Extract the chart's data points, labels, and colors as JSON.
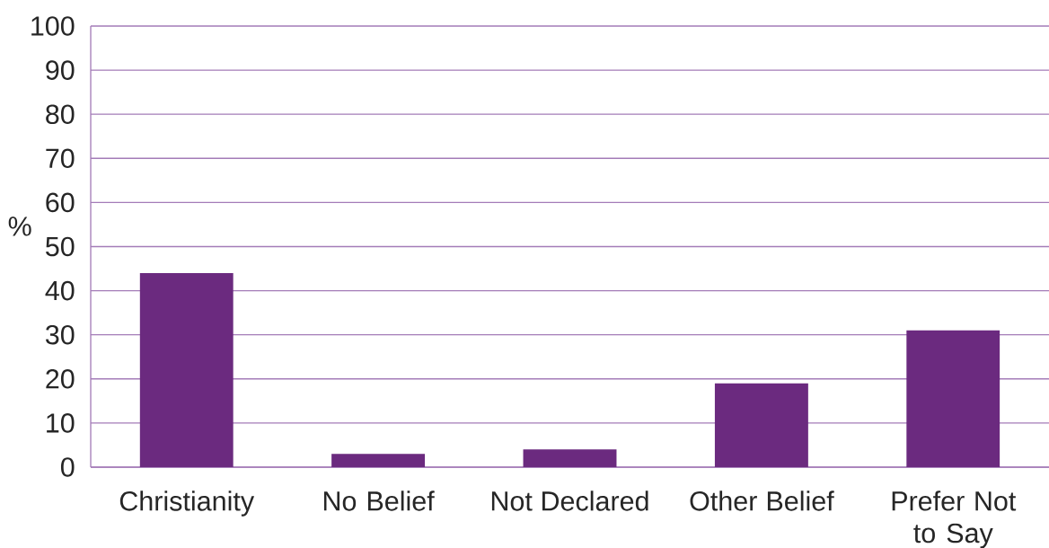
{
  "chart_data": {
    "type": "bar",
    "ylabel": "%",
    "categories": [
      "Christianity",
      "No Belief",
      "Not Declared",
      "Other Belief",
      "Prefer Not to Say"
    ],
    "values": [
      44,
      3,
      4,
      19,
      31
    ],
    "color": "#6b2a7f",
    "ylim": [
      0,
      100
    ],
    "yticks": [
      0,
      10,
      20,
      30,
      40,
      50,
      60,
      70,
      80,
      90,
      100
    ],
    "grid": "y"
  }
}
